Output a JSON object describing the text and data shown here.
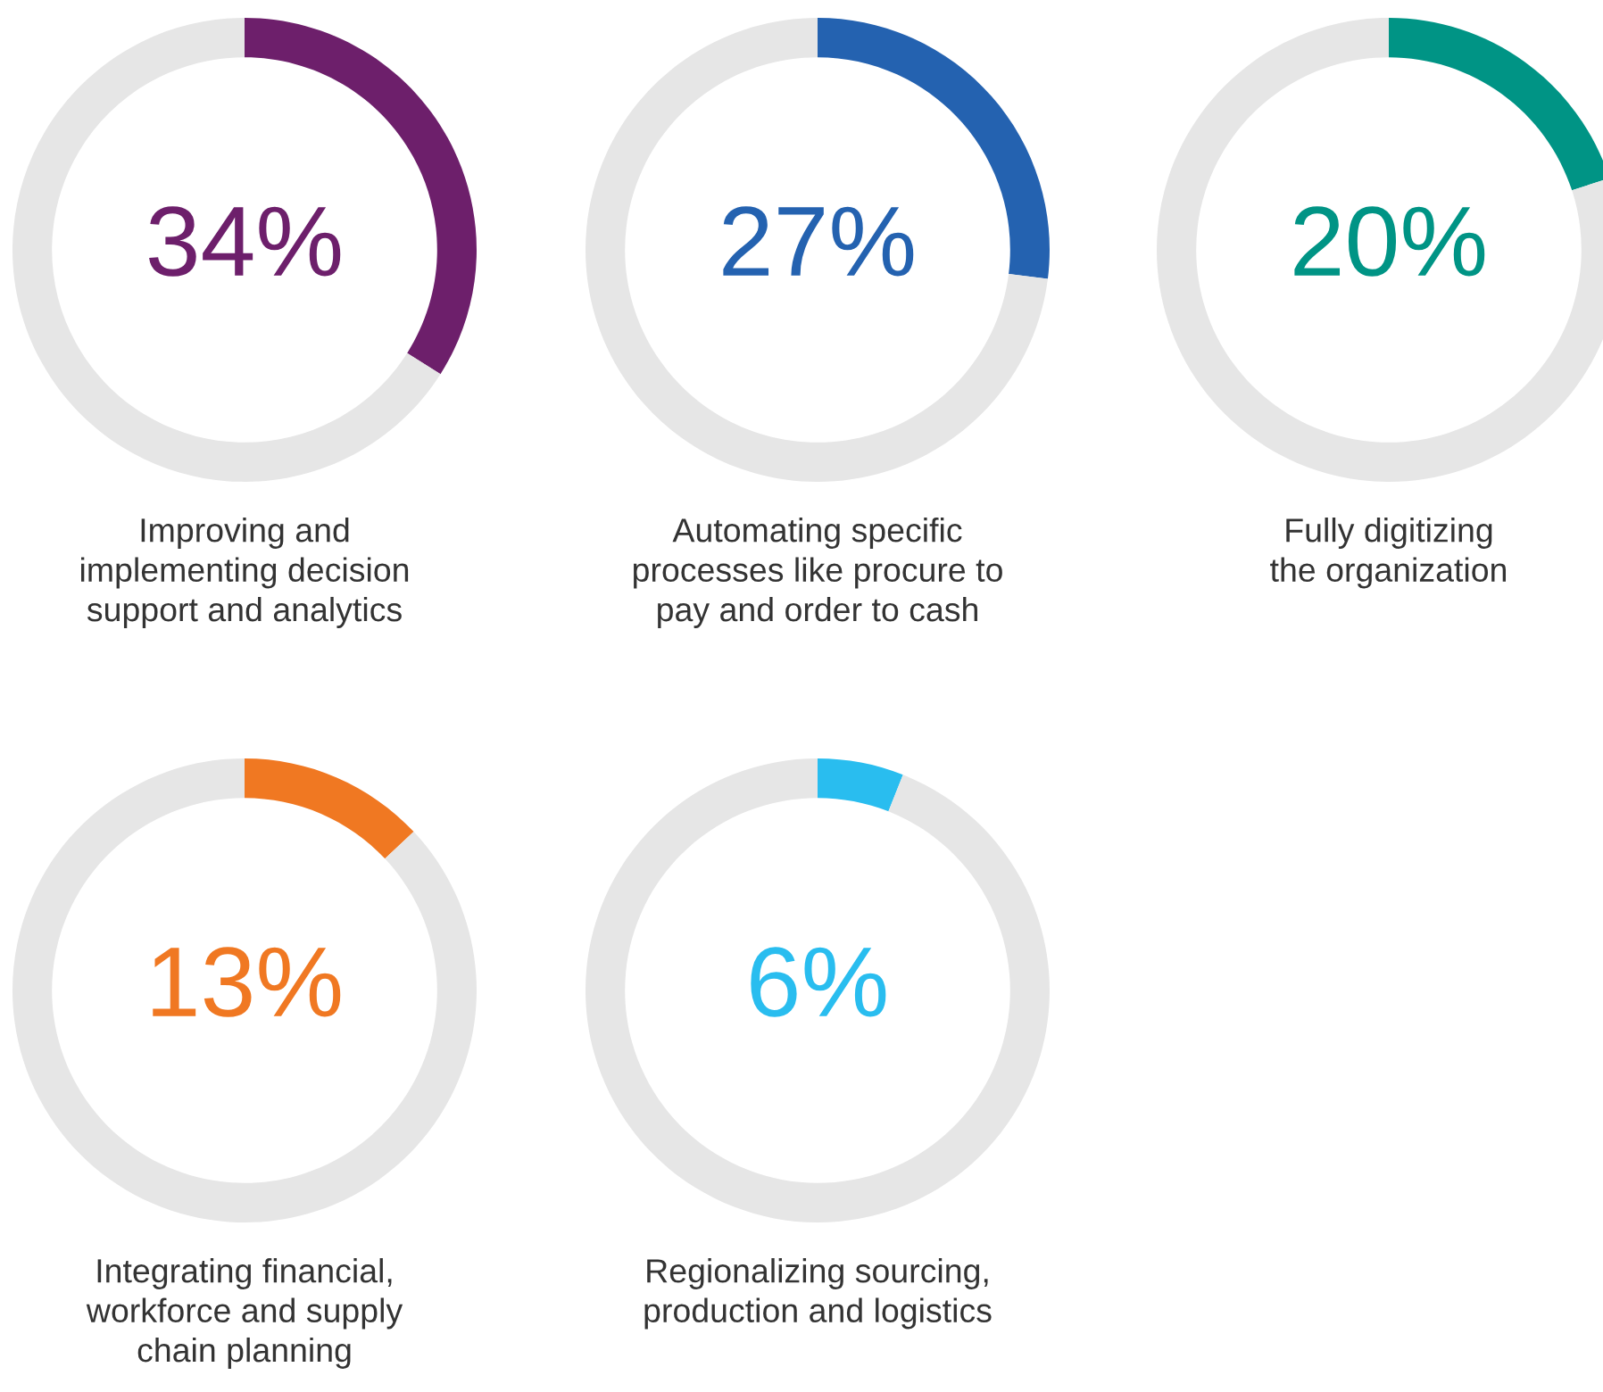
{
  "chart_data": [
    {
      "type": "donut",
      "categories": [
        null,
        null
      ],
      "values": [
        34,
        66
      ],
      "colors": [
        "#6d1f6b",
        "#e6e6e6"
      ],
      "value_labels": [
        "34%",
        null
      ],
      "annotations": [
        "Improving and\nimplementing decision\nsupport and analytics"
      ]
    },
    {
      "type": "donut",
      "categories": [
        null,
        null
      ],
      "values": [
        27,
        73
      ],
      "colors": [
        "#2462b0",
        "#e6e6e6"
      ],
      "value_labels": [
        "27%",
        null
      ],
      "annotations": [
        "Automating specific\nprocesses like procure to\npay and order to cash"
      ]
    },
    {
      "type": "donut",
      "categories": [
        null,
        null
      ],
      "values": [
        20,
        80
      ],
      "colors": [
        "#009485",
        "#e6e6e6"
      ],
      "value_labels": [
        "20%",
        null
      ],
      "annotations": [
        "Fully digitizing\nthe organization"
      ]
    },
    {
      "type": "donut",
      "categories": [
        null,
        null
      ],
      "values": [
        13,
        87
      ],
      "colors": [
        "#f07822",
        "#e6e6e6"
      ],
      "value_labels": [
        "13%",
        null
      ],
      "annotations": [
        "Integrating financial,\nworkforce and supply\nchain planning"
      ]
    },
    {
      "type": "donut",
      "categories": [
        null,
        null
      ],
      "values": [
        6,
        94
      ],
      "colors": [
        "#29bdef",
        "#e6e6e6"
      ],
      "value_labels": [
        "6%",
        null
      ],
      "annotations": [
        "Regionalizing sourcing,\nproduction and logistics"
      ]
    }
  ]
}
